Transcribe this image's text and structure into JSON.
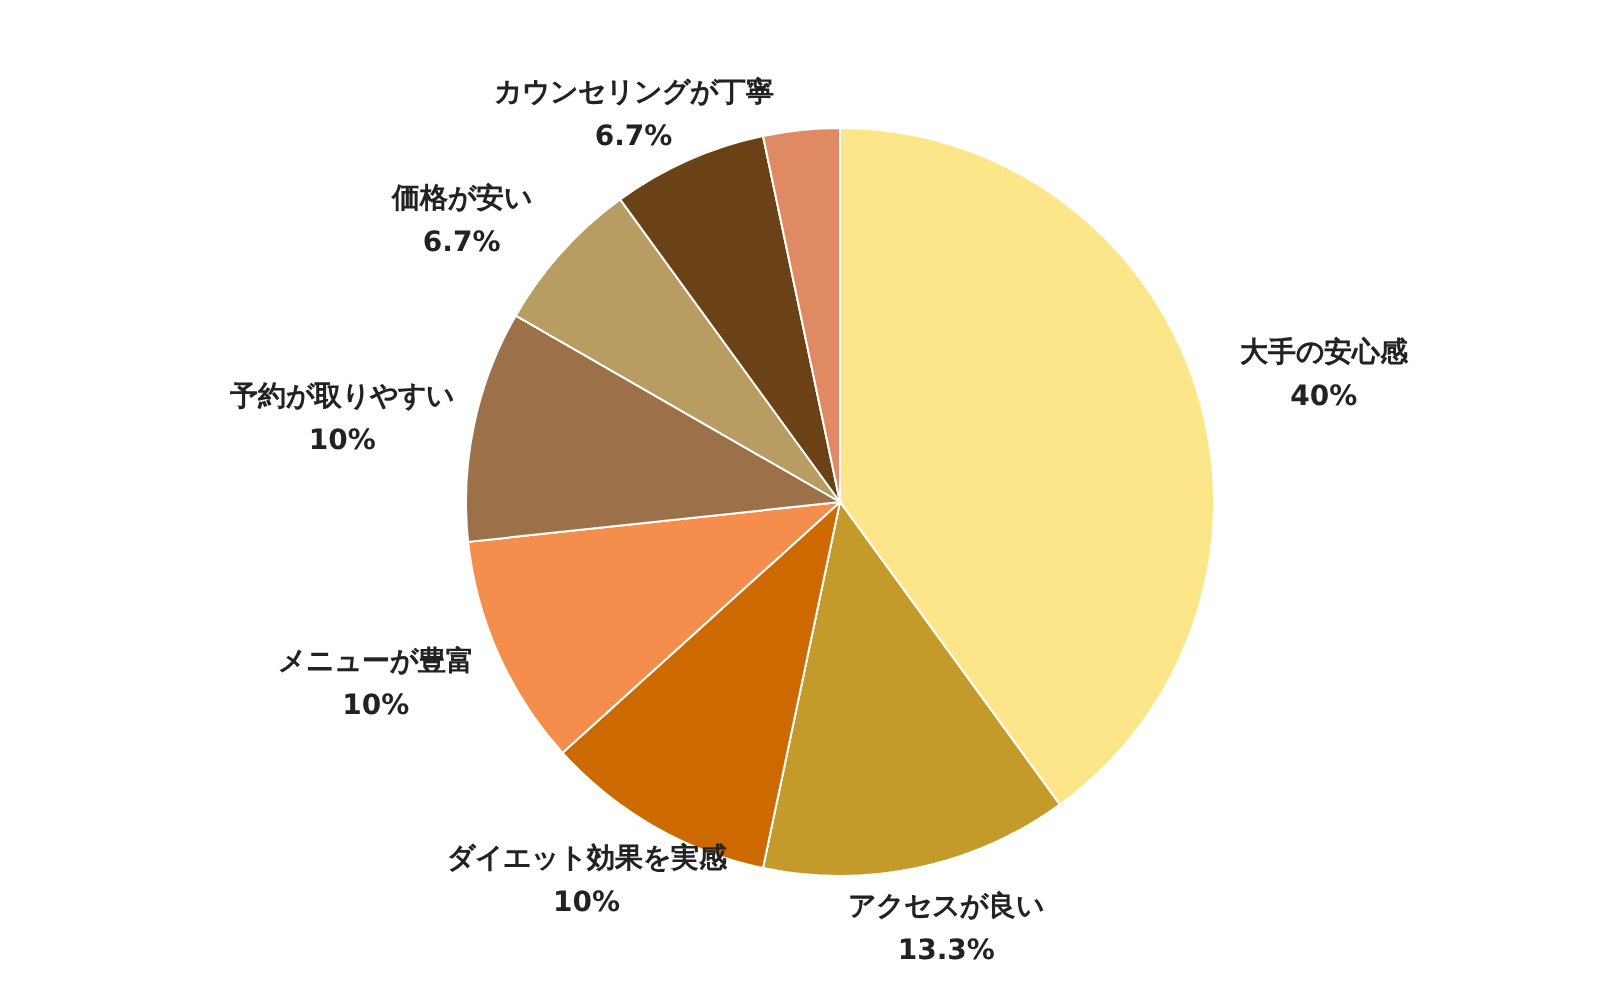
{
  "chart_data": {
    "type": "pie",
    "categories": [
      "大手の安心感",
      "アクセスが良い",
      "ダイエット効果を実感",
      "メニューが豊富",
      "予約が取りやすい",
      "価格が安い",
      "カウンセリングが丁寧",
      null
    ],
    "values": [
      40,
      13.3,
      10,
      10,
      10,
      6.7,
      6.7,
      3.3
    ],
    "value_labels": [
      "40%",
      "13.3%",
      "10%",
      "10%",
      "10%",
      "6.7%",
      "6.7%",
      null
    ],
    "colors": [
      "#fde68a",
      "#c49a2a",
      "#cc6a00",
      "#f58d4c",
      "#9c7048",
      "#b79d62",
      "#6b4215",
      "#e08a63"
    ]
  }
}
